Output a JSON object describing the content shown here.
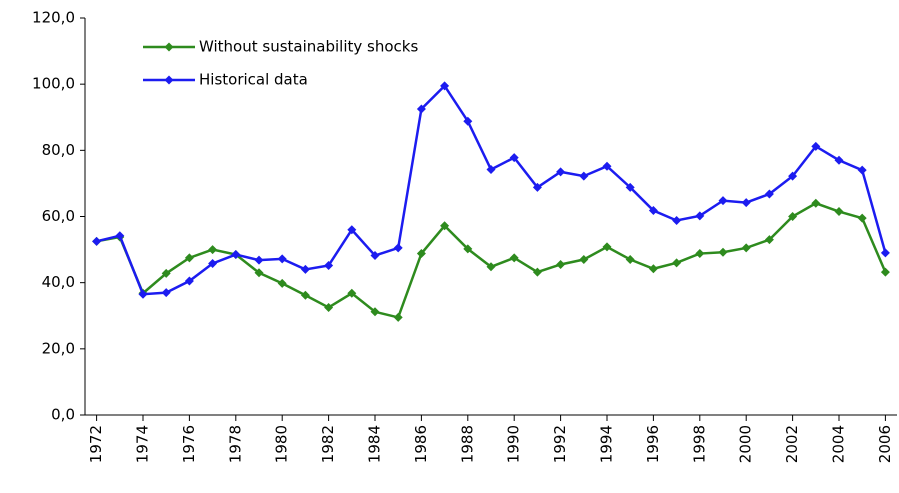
{
  "chart_data": {
    "type": "line",
    "x": [
      1972,
      1973,
      1974,
      1975,
      1976,
      1977,
      1978,
      1979,
      1980,
      1981,
      1982,
      1983,
      1984,
      1985,
      1986,
      1987,
      1988,
      1989,
      1990,
      1991,
      1992,
      1993,
      1994,
      1995,
      1996,
      1997,
      1998,
      1999,
      2000,
      2001,
      2002,
      2003,
      2004,
      2005,
      2006
    ],
    "series": [
      {
        "name": "Without sustainability  shocks",
        "color": "#2e8b1e",
        "values": [
          52.5,
          53.8,
          36.8,
          42.8,
          47.5,
          50,
          48.5,
          43,
          39.8,
          36.2,
          32.5,
          36.8,
          31.2,
          29.5,
          48.8,
          57.2,
          50.2,
          44.8,
          47.5,
          43.2,
          45.5,
          47,
          50.8,
          47,
          44.2,
          46,
          48.8,
          49.2,
          50.5,
          53,
          60,
          64,
          61.5,
          59.5,
          43.2
        ]
      },
      {
        "name": "Historical data",
        "color": "#1c1cf0",
        "values": [
          52.5,
          54.2,
          36.5,
          37,
          40.5,
          45.8,
          48.5,
          46.8,
          47.2,
          44,
          45.2,
          56,
          48.2,
          50.5,
          92.5,
          99.5,
          88.8,
          74.2,
          77.8,
          68.8,
          73.5,
          72.2,
          75.2,
          68.8,
          61.8,
          58.8,
          60.2,
          64.8,
          64.2,
          66.8,
          72.2,
          81.2,
          77,
          74,
          49
        ]
      }
    ],
    "xlim": [
      1971.5,
      2006.5
    ],
    "xticks": [
      1972,
      1974,
      1976,
      1978,
      1980,
      1982,
      1984,
      1986,
      1988,
      1990,
      1992,
      1994,
      1996,
      1998,
      2000,
      2002,
      2004,
      2006
    ],
    "ylim": [
      0,
      120
    ],
    "yticks": [
      {
        "value": 0,
        "label": "0,0"
      },
      {
        "value": 20,
        "label": "20,0"
      },
      {
        "value": 40,
        "label": "40,0"
      },
      {
        "value": 60,
        "label": "60,0"
      },
      {
        "value": 80,
        "label": "80,0"
      },
      {
        "value": 100,
        "label": "100,0"
      },
      {
        "value": 120,
        "label": "120,0"
      }
    ],
    "grid": false,
    "legend": "top-left"
  }
}
